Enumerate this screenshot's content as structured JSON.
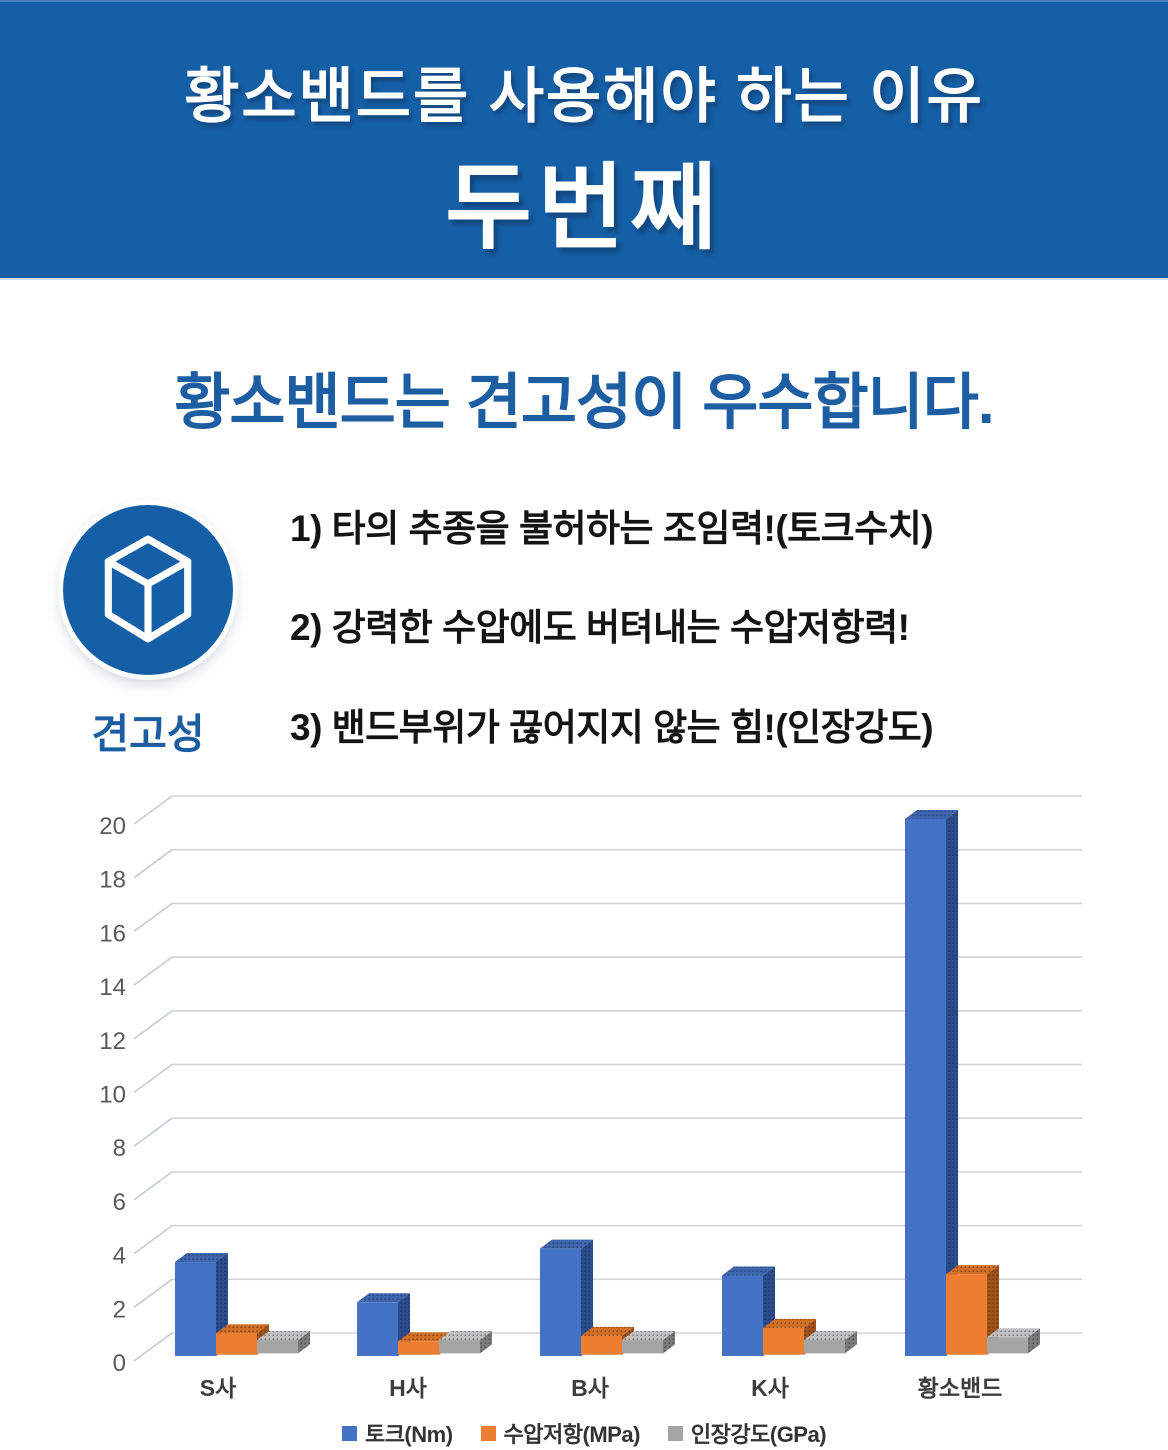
{
  "banner": {
    "subtitle": "황소밴드를 사용해야 하는 이유",
    "title": "두번째",
    "bg_color": "#155FA6",
    "text_color": "#FFFFFF"
  },
  "headline": {
    "text": "황소밴드는 견고성이 우수합니다.",
    "color": "#1D5DA2"
  },
  "feature": {
    "icon": "cube-icon",
    "label": "견고성",
    "points": [
      "1) 타의 추종을 불허하는 조임력!(토크수치)",
      "2) 강력한 수압에도 버텨내는 수압저항력!",
      "3) 밴드부위가 끊어지지 않는 힘!(인장강도)"
    ]
  },
  "chart_data": {
    "type": "bar",
    "style": "3d-clustered-column",
    "categories": [
      "S사",
      "H사",
      "B사",
      "K사",
      "황소밴드"
    ],
    "series": [
      {
        "name": "토크(Nm)",
        "color": "#4472C4",
        "values": [
          3.5,
          2,
          4,
          3,
          20
        ]
      },
      {
        "name": "수압저항(MPa)",
        "color": "#ED7D31",
        "values": [
          0.8,
          0.5,
          0.7,
          1,
          3
        ]
      },
      {
        "name": "인장강도(GPa)",
        "color": "#A5A5A5",
        "values": [
          0.5,
          0.5,
          0.5,
          0.5,
          0.6
        ]
      }
    ],
    "title": "",
    "xlabel": "",
    "ylabel": "",
    "ylim": [
      0,
      20
    ],
    "ytick_step": 2,
    "grid": true,
    "legend_position": "bottom"
  }
}
